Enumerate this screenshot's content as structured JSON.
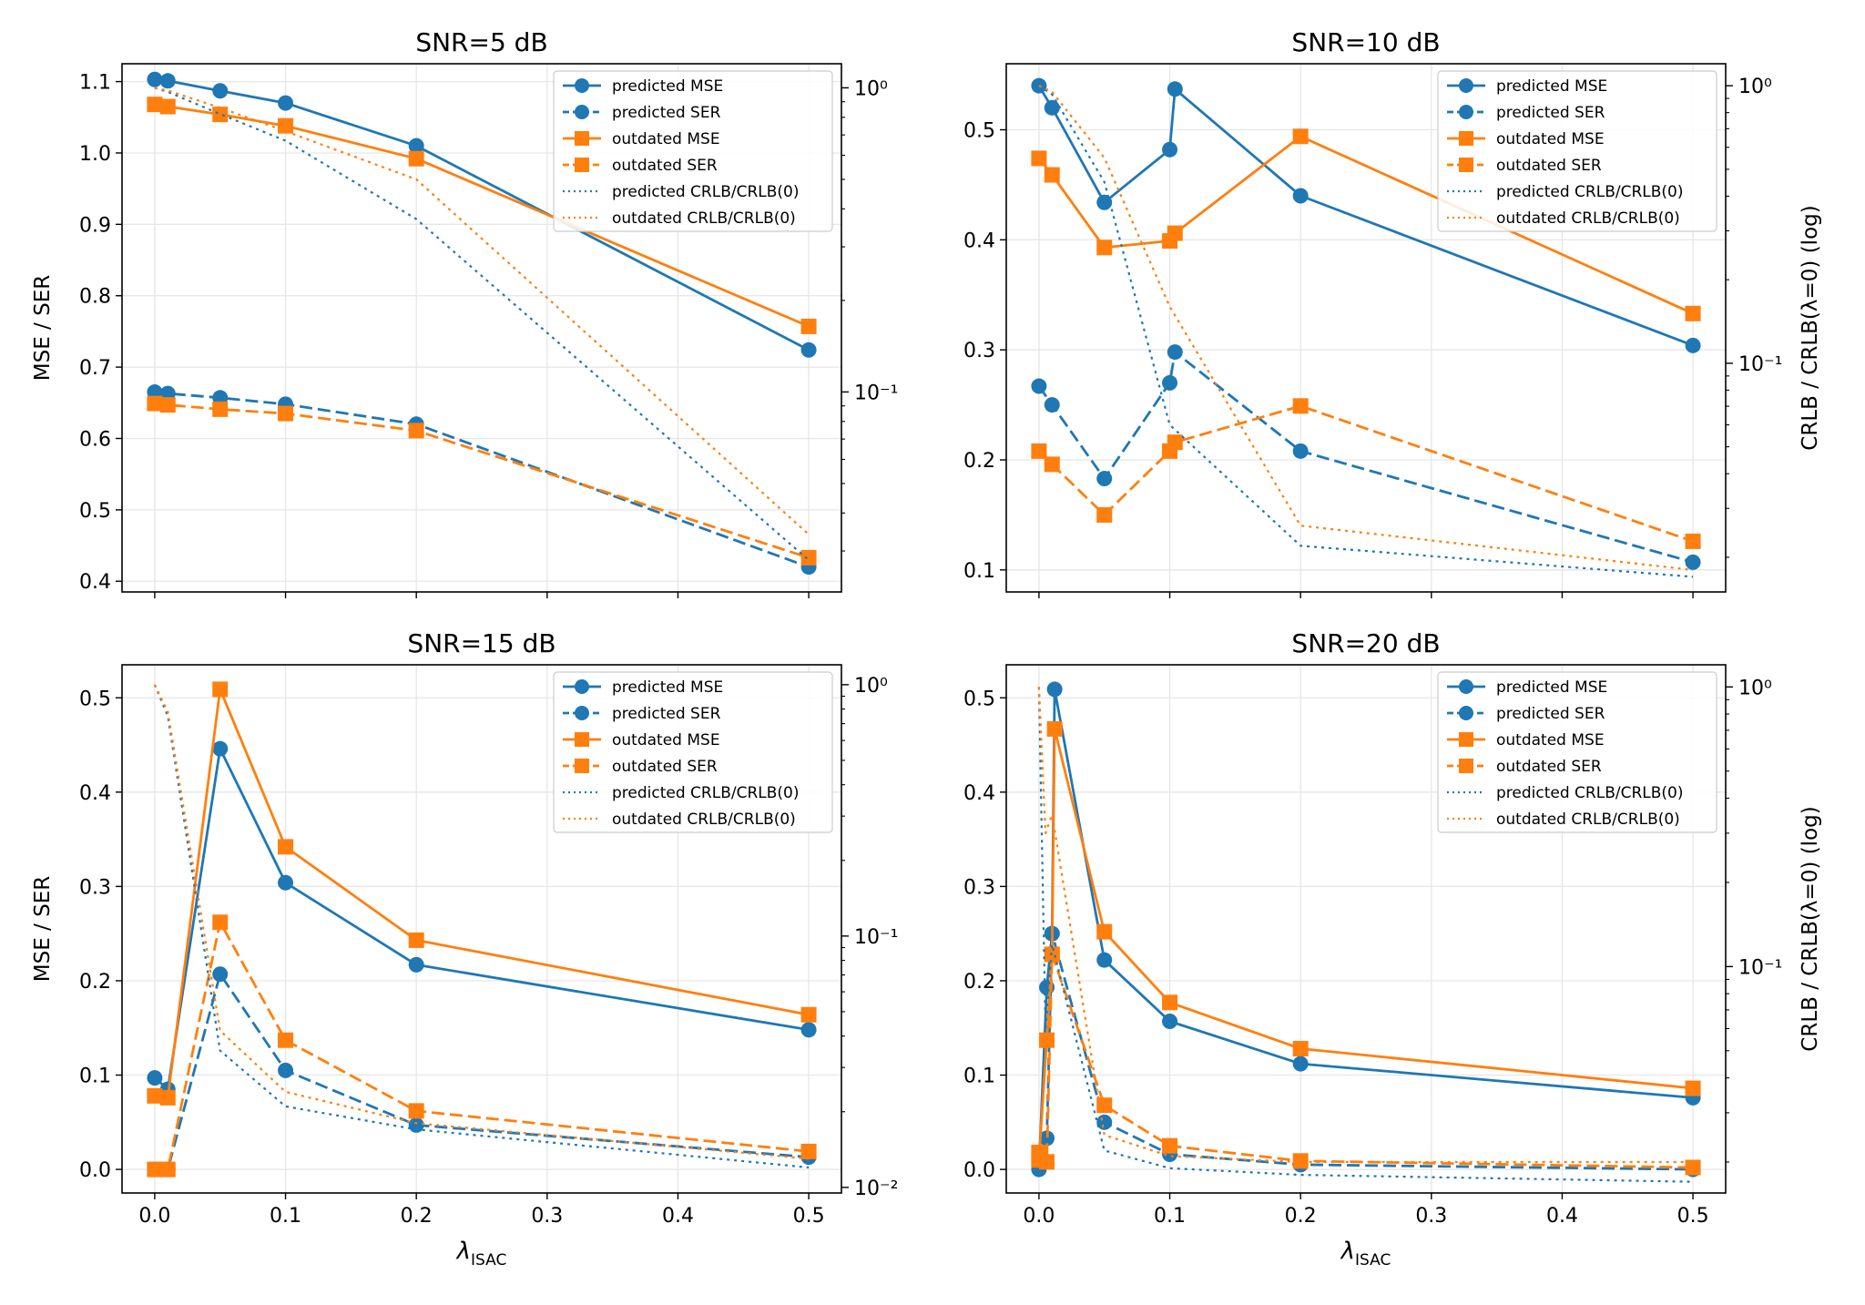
{
  "figure": {
    "x_label": "λ",
    "x_label_sub": "ISAC",
    "left_axis_label": "MSE / SER",
    "right_axis_label": "CRLB / CRLB(λ=0) (log)"
  },
  "colors": {
    "predicted": "#1f77b4",
    "outdated": "#ff7f0e",
    "grid": "#e6e6e6"
  },
  "legend": [
    {
      "label": "predicted MSE",
      "color": "#1f77b4",
      "style": "solid",
      "marker": "circle"
    },
    {
      "label": "predicted SER",
      "color": "#1f77b4",
      "style": "dashed",
      "marker": "circle"
    },
    {
      "label": "outdated MSE",
      "color": "#ff7f0e",
      "style": "solid",
      "marker": "square"
    },
    {
      "label": "outdated SER",
      "color": "#ff7f0e",
      "style": "dashed",
      "marker": "square"
    },
    {
      "label": "predicted CRLB/CRLB(0)",
      "color": "#1f77b4",
      "style": "dotted",
      "marker": "none"
    },
    {
      "label": "outdated CRLB/CRLB(0)",
      "color": "#ff7f0e",
      "style": "dotted",
      "marker": "none"
    }
  ],
  "chart_data": [
    {
      "type": "line",
      "title": "SNR=5 dB",
      "x": [
        0,
        0.01,
        0.05,
        0.1,
        0.2,
        0.5
      ],
      "xlim": [
        -0.025,
        0.525
      ],
      "xticks": [
        0,
        0.1,
        0.2,
        0.3,
        0.4,
        0.5
      ],
      "xtick_labels": [
        "0.0",
        "0.1",
        "0.2",
        "0.3",
        "0.4",
        "0.5"
      ],
      "show_xtick_labels": false,
      "show_xlabel": false,
      "ylim": [
        0.385,
        1.125
      ],
      "yticks": [
        0.4,
        0.5,
        0.6,
        0.7,
        0.8,
        0.9,
        1.0,
        1.1
      ],
      "ytick_labels": [
        "0.4",
        "0.5",
        "0.6",
        "0.7",
        "0.8",
        "0.9",
        "1.0",
        "1.1"
      ],
      "show_ylabel": true,
      "y2_log_range": [
        0.022,
        1.2
      ],
      "y2_ticks": [
        1.0,
        0.1
      ],
      "y2_tick_labels": [
        "10⁰",
        "10⁻¹"
      ],
      "show_y2label": false,
      "series": [
        {
          "name": "predicted MSE",
          "axis": "left",
          "values": [
            1.103,
            1.101,
            1.087,
            1.07,
            1.01,
            0.724
          ]
        },
        {
          "name": "predicted SER",
          "axis": "left",
          "values": [
            0.665,
            0.663,
            0.657,
            0.648,
            0.62,
            0.42
          ]
        },
        {
          "name": "outdated MSE",
          "axis": "left",
          "values": [
            1.068,
            1.065,
            1.054,
            1.038,
            0.992,
            0.757
          ]
        },
        {
          "name": "outdated SER",
          "axis": "left",
          "values": [
            0.649,
            0.647,
            0.641,
            0.635,
            0.611,
            0.433
          ]
        },
        {
          "name": "predicted CRLB/CRLB(0)",
          "axis": "right",
          "values": [
            1.0,
            0.97,
            0.82,
            0.67,
            0.37,
            0.028
          ]
        },
        {
          "name": "outdated CRLB/CRLB(0)",
          "axis": "right",
          "values": [
            1.0,
            0.98,
            0.86,
            0.72,
            0.5,
            0.034
          ]
        }
      ]
    },
    {
      "type": "line",
      "title": "SNR=10 dB",
      "x": [
        0,
        0.01,
        0.05,
        0.1,
        0.2,
        0.5
      ],
      "xlim": [
        -0.025,
        0.525
      ],
      "xticks": [
        0,
        0.1,
        0.2,
        0.3,
        0.4,
        0.5
      ],
      "xtick_labels": [
        "0.0",
        "0.1",
        "0.2",
        "0.3",
        "0.4",
        "0.5"
      ],
      "show_xtick_labels": false,
      "show_xlabel": false,
      "ylim": [
        0.08,
        0.56
      ],
      "yticks": [
        0.1,
        0.2,
        0.3,
        0.4,
        0.5
      ],
      "ytick_labels": [
        "0.1",
        "0.2",
        "0.3",
        "0.4",
        "0.5"
      ],
      "show_ylabel": false,
      "y2_log_range": [
        0.015,
        1.2
      ],
      "y2_ticks": [
        1.0,
        0.1
      ],
      "y2_tick_labels": [
        "10⁰",
        "10⁻¹"
      ],
      "show_y2label": true,
      "series": [
        {
          "name": "predicted MSE",
          "axis": "left",
          "values": [
            0.54,
            0.52,
            0.434,
            0.482,
            0.537,
            0.44,
            0.304
          ],
          "x": [
            0,
            0.01,
            0.05,
            0.1,
            0.104,
            0.2,
            0.5
          ]
        },
        {
          "name": "predicted SER",
          "axis": "left",
          "values": [
            0.267,
            0.25,
            0.183,
            0.27,
            0.298,
            0.208,
            0.107
          ],
          "x": [
            0,
            0.01,
            0.05,
            0.1,
            0.104,
            0.2,
            0.5
          ]
        },
        {
          "name": "outdated MSE",
          "axis": "left",
          "values": [
            0.474,
            0.459,
            0.393,
            0.399,
            0.406,
            0.494,
            0.333
          ],
          "x": [
            0,
            0.01,
            0.05,
            0.1,
            0.104,
            0.2,
            0.5
          ]
        },
        {
          "name": "outdated SER",
          "axis": "left",
          "values": [
            0.208,
            0.196,
            0.15,
            0.208,
            0.216,
            0.249,
            0.126
          ],
          "x": [
            0,
            0.01,
            0.05,
            0.1,
            0.104,
            0.2,
            0.5
          ]
        },
        {
          "name": "predicted CRLB/CRLB(0)",
          "axis": "right",
          "values": [
            1.0,
            0.93,
            0.45,
            0.06,
            0.022,
            0.017
          ],
          "x": [
            0,
            0.01,
            0.05,
            0.1,
            0.2,
            0.5
          ]
        },
        {
          "name": "outdated CRLB/CRLB(0)",
          "axis": "right",
          "values": [
            1.0,
            0.95,
            0.55,
            0.16,
            0.026,
            0.018
          ],
          "x": [
            0,
            0.01,
            0.05,
            0.1,
            0.2,
            0.5
          ]
        }
      ]
    },
    {
      "type": "line",
      "title": "SNR=15 dB",
      "x": [
        0,
        0.01,
        0.05,
        0.1,
        0.2,
        0.5
      ],
      "xlim": [
        -0.025,
        0.525
      ],
      "xticks": [
        0,
        0.1,
        0.2,
        0.3,
        0.4,
        0.5
      ],
      "xtick_labels": [
        "0.0",
        "0.1",
        "0.2",
        "0.3",
        "0.4",
        "0.5"
      ],
      "show_xtick_labels": true,
      "show_xlabel": true,
      "ylim": [
        -0.025,
        0.535
      ],
      "yticks": [
        0.0,
        0.1,
        0.2,
        0.3,
        0.4,
        0.5
      ],
      "ytick_labels": [
        "0.0",
        "0.1",
        "0.2",
        "0.3",
        "0.4",
        "0.5"
      ],
      "show_ylabel": true,
      "y2_log_range": [
        0.0095,
        1.2
      ],
      "y2_ticks": [
        1.0,
        0.1,
        0.01
      ],
      "y2_tick_labels": [
        "10⁰",
        "10⁻¹",
        "10⁻²"
      ],
      "show_y2label": false,
      "series": [
        {
          "name": "predicted MSE",
          "axis": "left",
          "values": [
            0.097,
            0.085,
            0.446,
            0.304,
            0.217,
            0.148
          ]
        },
        {
          "name": "predicted SER",
          "axis": "left",
          "values": [
            0.0,
            0.0,
            0.207,
            0.105,
            0.047,
            0.013
          ]
        },
        {
          "name": "outdated MSE",
          "axis": "left",
          "values": [
            0.078,
            0.076,
            0.509,
            0.342,
            0.243,
            0.164
          ]
        },
        {
          "name": "outdated SER",
          "axis": "left",
          "values": [
            0.0,
            0.0,
            0.262,
            0.137,
            0.062,
            0.019
          ]
        },
        {
          "name": "predicted CRLB/CRLB(0)",
          "axis": "right",
          "values": [
            1.0,
            0.75,
            0.035,
            0.021,
            0.017,
            0.012
          ]
        },
        {
          "name": "outdated CRLB/CRLB(0)",
          "axis": "right",
          "values": [
            1.0,
            0.78,
            0.042,
            0.024,
            0.018,
            0.013
          ]
        }
      ]
    },
    {
      "type": "line",
      "title": "SNR=20 dB",
      "x": [
        0,
        0.005,
        0.01,
        0.05,
        0.1,
        0.2,
        0.5
      ],
      "xlim": [
        -0.025,
        0.525
      ],
      "xticks": [
        0,
        0.1,
        0.2,
        0.3,
        0.4,
        0.5
      ],
      "xtick_labels": [
        "0.0",
        "0.1",
        "0.2",
        "0.3",
        "0.4",
        "0.5"
      ],
      "show_xtick_labels": true,
      "show_xlabel": true,
      "ylim": [
        -0.025,
        0.535
      ],
      "yticks": [
        0.0,
        0.1,
        0.2,
        0.3,
        0.4,
        0.5
      ],
      "ytick_labels": [
        "0.0",
        "0.1",
        "0.2",
        "0.3",
        "0.4",
        "0.5"
      ],
      "show_ylabel": false,
      "y2_log_range": [
        0.0155,
        1.2
      ],
      "y2_ticks": [
        1.0,
        0.1
      ],
      "y2_tick_labels": [
        "10⁰",
        "10⁻¹"
      ],
      "show_y2label": true,
      "series": [
        {
          "name": "predicted MSE",
          "axis": "left",
          "values": [
            0.0,
            0.193,
            0.25,
            0.509,
            0.222,
            0.157,
            0.112,
            0.076
          ],
          "x": [
            0,
            0.006,
            0.01,
            0.012,
            0.05,
            0.1,
            0.2,
            0.5
          ]
        },
        {
          "name": "predicted SER",
          "axis": "left",
          "values": [
            0.01,
            0.033,
            0.25,
            0.05,
            0.016,
            0.005,
            0.0
          ],
          "x": [
            0,
            0.006,
            0.01,
            0.05,
            0.1,
            0.2,
            0.5
          ]
        },
        {
          "name": "outdated MSE",
          "axis": "left",
          "values": [
            0.01,
            0.137,
            0.228,
            0.467,
            0.252,
            0.177,
            0.128,
            0.086
          ],
          "x": [
            0,
            0.006,
            0.01,
            0.012,
            0.05,
            0.1,
            0.2,
            0.5
          ]
        },
        {
          "name": "outdated SER",
          "axis": "left",
          "values": [
            0.018,
            0.008,
            0.228,
            0.068,
            0.025,
            0.009,
            0.002
          ],
          "x": [
            0,
            0.006,
            0.01,
            0.05,
            0.1,
            0.2,
            0.5
          ]
        },
        {
          "name": "predicted CRLB/CRLB(0)",
          "axis": "right",
          "values": [
            1.0,
            0.06,
            0.12,
            0.022,
            0.019,
            0.018,
            0.017
          ],
          "x": [
            0,
            0.005,
            0.01,
            0.05,
            0.1,
            0.2,
            0.5
          ]
        },
        {
          "name": "outdated CRLB/CRLB(0)",
          "axis": "right",
          "values": [
            1.0,
            0.3,
            0.35,
            0.025,
            0.021,
            0.02,
            0.02
          ],
          "x": [
            0,
            0.005,
            0.01,
            0.05,
            0.1,
            0.2,
            0.5
          ]
        }
      ]
    }
  ]
}
